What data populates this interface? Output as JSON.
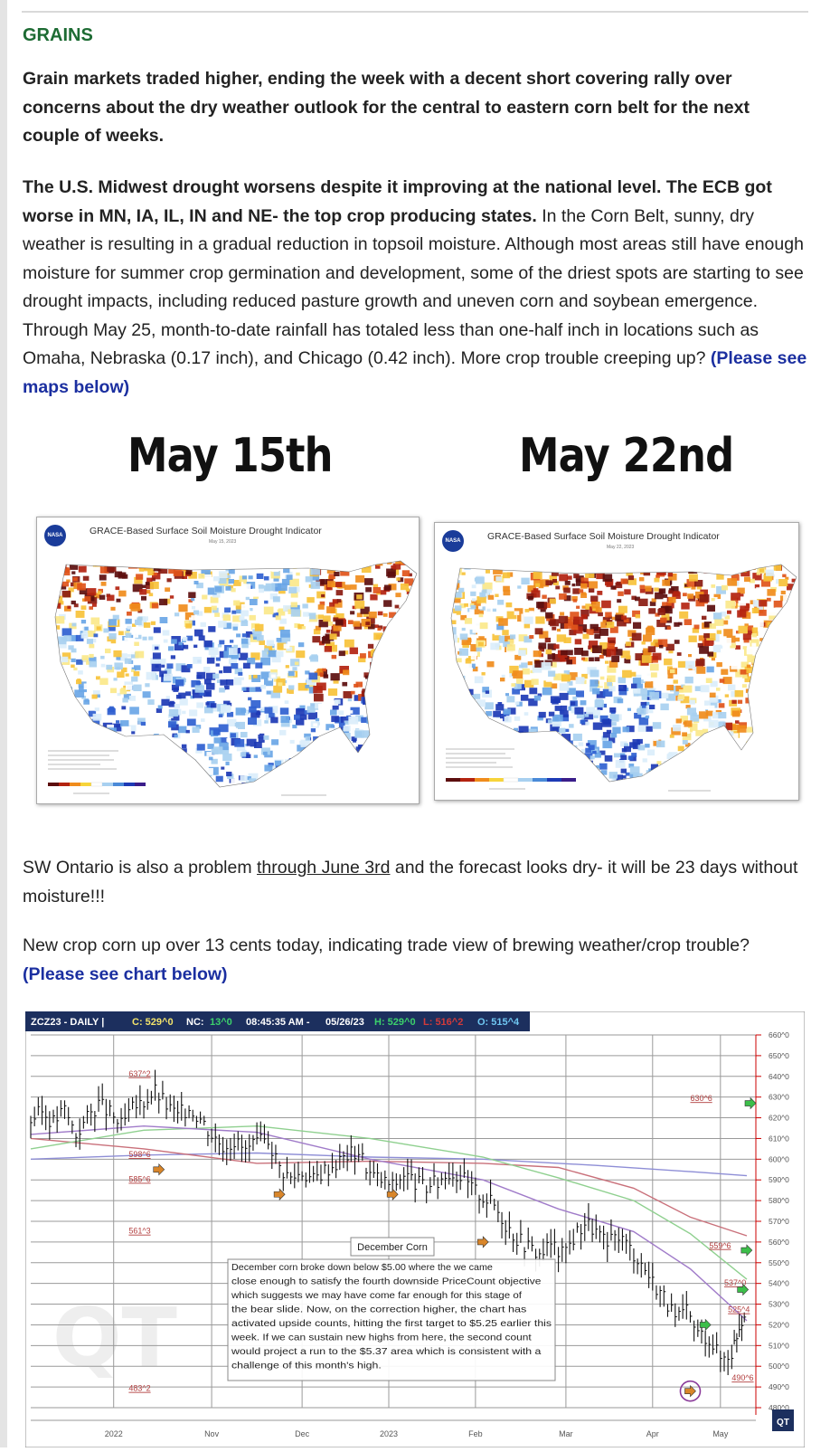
{
  "section_heading": "GRAINS",
  "paragraph1": "Grain markets traded higher, ending the week with a decent short covering rally over concerns about the dry weather outlook for the central to eastern corn belt for the next couple of weeks.",
  "paragraph2": {
    "bold": "The U.S. Midwest drought worsens despite it improving at the national level. The ECB got worse in MN, IA, IL, IN and NE- the top crop producing states.",
    "text": " In the Corn Belt, sunny, dry weather is resulting in a gradual reduction in topsoil moisture. Although most areas still have enough moisture for summer crop germination and development, some of the driest spots are starting to see drought impacts, including reduced pasture growth and uneven corn and soybean emergence. Through May 25, month-to-date rainfall has totaled less than one-half inch in locations such as Omaha, Nebraska (0.17 inch), and Chicago (0.42 inch). More crop trouble creeping up? ",
    "link": "(Please see maps below)"
  },
  "maps": {
    "left": {
      "label": "May 15th",
      "title": "GRACE-Based Surface Soil  Moisture Drought Indicator",
      "date": "May 15, 2023",
      "logo": "NASA"
    },
    "right": {
      "label": "May 22nd",
      "title": "GRACE-Based Surface Soil  Moisture Drought Indicator",
      "date": "May 22, 2023",
      "logo": "NASA"
    }
  },
  "paragraph3": {
    "pre": "SW Ontario is also a problem ",
    "underlined": "through June 3rd",
    "post": " and the forecast looks dry- it will be 23 days without moisture!!!"
  },
  "paragraph4": {
    "text": "New crop corn up over 13 cents today, indicating trade view of brewing weather/crop trouble? ",
    "link": "(Please see chart below)"
  },
  "chart_data": {
    "type": "line",
    "header": {
      "symbol": "ZCZ23 - DAILY",
      "c": "C: 529^0",
      "nc_label": "NC:",
      "nc": "13^0",
      "time": "08:45:35 AM",
      "date": "05/26/23",
      "h": "H: 529^0",
      "l": "L: 516^2",
      "o": "O: 515^4"
    },
    "y_ticks": [
      "660^0",
      "650^0",
      "640^0",
      "630^0",
      "620^0",
      "610^0",
      "600^0",
      "590^0",
      "580^0",
      "570^0",
      "560^0",
      "550^0",
      "540^0",
      "530^0",
      "520^0",
      "510^0",
      "500^0",
      "490^0",
      "480^0"
    ],
    "ylim": [
      480,
      660
    ],
    "x_ticks": [
      "2022",
      "Nov",
      "Dec",
      "2023",
      "Feb",
      "Mar",
      "Apr",
      "May"
    ],
    "price_labels": [
      "637^2",
      "598^6",
      "585^6",
      "561^3",
      "483^2",
      "630^6",
      "559^6",
      "537^0",
      "525^4",
      "490^6"
    ],
    "annotation_title": "December Corn",
    "annotation_lines": [
      "December corn broke down below $5.00 where the we came",
      "close enough to satisfy the fourth downside PriceCount objective",
      "which suggests we may have come far enough for this stage of",
      "the bear slide.  Now, on the correction higher, the chart has",
      "activated upside counts, hitting the first target to $5.25 earlier this",
      "week.  If we can sustain new highs from here, the second count",
      "would project a run to the $5.37 area which is consistent with a",
      "challenge of this month's high."
    ],
    "close_series": [
      [
        0,
        619
      ],
      [
        3,
        623
      ],
      [
        6,
        618
      ],
      [
        9,
        624
      ],
      [
        12,
        612
      ],
      [
        15,
        620
      ],
      [
        18,
        627
      ],
      [
        21,
        622
      ],
      [
        24,
        616
      ],
      [
        27,
        624
      ],
      [
        30,
        628
      ],
      [
        33,
        633
      ],
      [
        36,
        626
      ],
      [
        39,
        621
      ],
      [
        42,
        625
      ],
      [
        45,
        620
      ],
      [
        48,
        612
      ],
      [
        51,
        607
      ],
      [
        54,
        609
      ],
      [
        57,
        604
      ],
      [
        60,
        607
      ],
      [
        63,
        610
      ],
      [
        66,
        596
      ],
      [
        69,
        591
      ],
      [
        72,
        594
      ],
      [
        75,
        590
      ],
      [
        78,
        595
      ],
      [
        81,
        598
      ],
      [
        84,
        602
      ],
      [
        87,
        604
      ],
      [
        90,
        593
      ],
      [
        93,
        590
      ],
      [
        96,
        587
      ],
      [
        99,
        593
      ],
      [
        102,
        589
      ],
      [
        105,
        586
      ],
      [
        108,
        589
      ],
      [
        111,
        594
      ],
      [
        114,
        592
      ],
      [
        117,
        586
      ],
      [
        120,
        582
      ],
      [
        123,
        578
      ],
      [
        126,
        569
      ],
      [
        129,
        562
      ],
      [
        132,
        558
      ],
      [
        135,
        554
      ],
      [
        138,
        559
      ],
      [
        141,
        554
      ],
      [
        144,
        562
      ],
      [
        147,
        570
      ],
      [
        150,
        565
      ],
      [
        153,
        558
      ],
      [
        156,
        564
      ],
      [
        159,
        557
      ],
      [
        162,
        550
      ],
      [
        165,
        541
      ],
      [
        168,
        534
      ],
      [
        171,
        522
      ],
      [
        174,
        526
      ],
      [
        177,
        516
      ],
      [
        180,
        514
      ],
      [
        183,
        504
      ],
      [
        186,
        507
      ],
      [
        188,
        520
      ],
      [
        190,
        529
      ]
    ],
    "ma_fast": [
      [
        0,
        612
      ],
      [
        30,
        616
      ],
      [
        60,
        613
      ],
      [
        90,
        600
      ],
      [
        120,
        590
      ],
      [
        140,
        576
      ],
      [
        160,
        565
      ],
      [
        175,
        547
      ],
      [
        190,
        522
      ]
    ],
    "ma_mid": [
      [
        0,
        605
      ],
      [
        30,
        614
      ],
      [
        60,
        616
      ],
      [
        90,
        610
      ],
      [
        120,
        601
      ],
      [
        140,
        591
      ],
      [
        160,
        580
      ],
      [
        175,
        564
      ],
      [
        190,
        542
      ]
    ],
    "ma_slow1": [
      [
        0,
        610
      ],
      [
        30,
        605
      ],
      [
        60,
        598
      ],
      [
        90,
        599
      ],
      [
        120,
        598
      ],
      [
        140,
        596
      ],
      [
        160,
        586
      ],
      [
        175,
        572
      ],
      [
        190,
        563
      ]
    ],
    "ma_slow2": [
      [
        0,
        600
      ],
      [
        30,
        602
      ],
      [
        60,
        603
      ],
      [
        90,
        601
      ],
      [
        120,
        600
      ],
      [
        150,
        597
      ],
      [
        175,
        594
      ],
      [
        190,
        592
      ]
    ],
    "watermark": "QT"
  }
}
